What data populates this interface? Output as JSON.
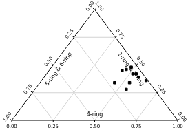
{
  "chart_data": {
    "type": "ternary",
    "axes": {
      "x": {
        "label": "4-ring",
        "lim": [
          0,
          1
        ],
        "ticks": [
          {
            "value": 0,
            "label": "0.00"
          },
          {
            "value": 0.25,
            "label": "0.25"
          },
          {
            "value": 0.5,
            "label": "0.50"
          },
          {
            "value": 0.75,
            "label": "0.75"
          },
          {
            "value": 1,
            "label": "1.00"
          }
        ]
      },
      "y": {
        "label": "2-ring & 3-ring",
        "lim": [
          0,
          1
        ],
        "ticks": [
          {
            "value": 0,
            "label": "0.00"
          },
          {
            "value": 0.25,
            "label": "0.25"
          },
          {
            "value": 0.5,
            "label": "0.50"
          },
          {
            "value": 0.75,
            "label": "0.75"
          },
          {
            "value": 1,
            "label": "1.00"
          }
        ]
      },
      "z": {
        "label": "5-ring & 6-ring",
        "lim": [
          0,
          1
        ],
        "ticks": [
          {
            "value": 0,
            "label": "0.00"
          },
          {
            "value": 0.25,
            "label": "0.25"
          },
          {
            "value": 0.5,
            "label": "0.50"
          },
          {
            "value": 0.75,
            "label": "0.75"
          },
          {
            "value": 1,
            "label": "1.00"
          }
        ]
      }
    },
    "series": [
      {
        "color": "#000000",
        "marker": "square",
        "x": [
          0.46,
          0.44,
          0.48,
          0.52,
          0.54,
          0.57,
          0.63,
          0.45,
          0.54,
          0.55
        ],
        "y": [
          0.46,
          0.45,
          0.48,
          0.42,
          0.42,
          0.39,
          0.36,
          0.34,
          0.34,
          0.28
        ],
        "z": [
          0.08,
          0.11,
          0.04,
          0.06,
          0.04,
          0.04,
          0.01,
          0.21,
          0.12,
          0.17
        ]
      }
    ],
    "grid": true
  }
}
